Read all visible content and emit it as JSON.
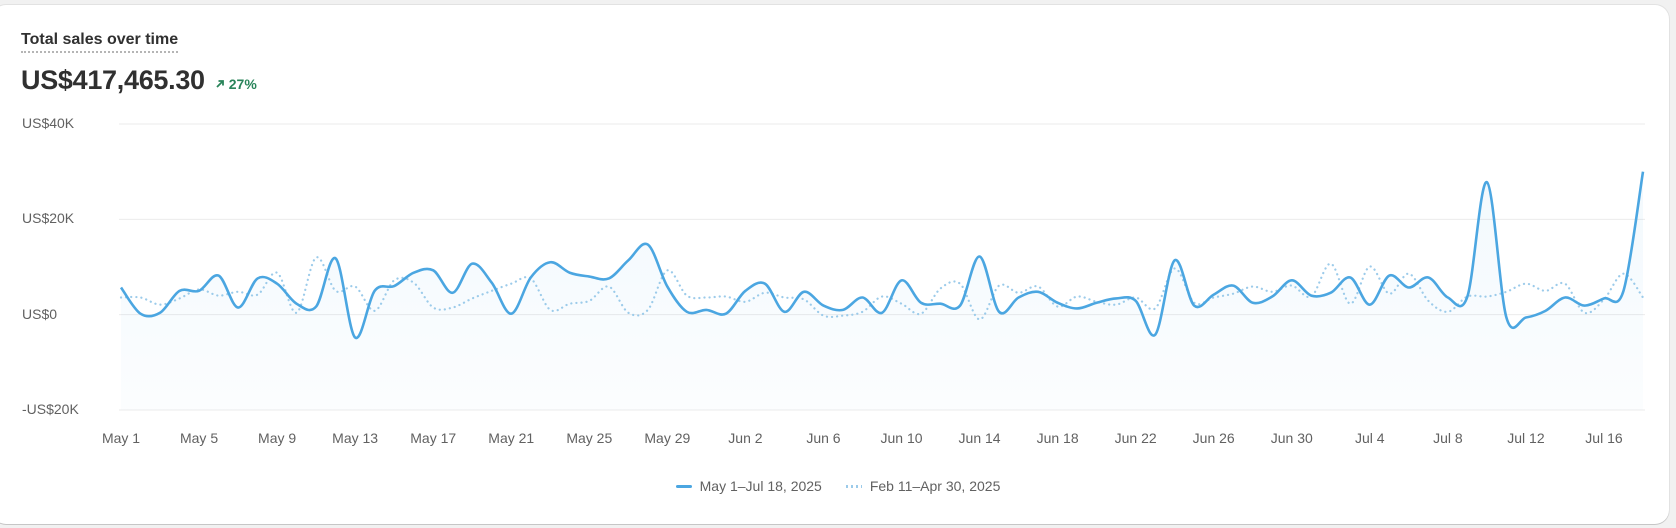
{
  "card": {
    "title": "Total sales over time",
    "metric": "US$417,465.30",
    "delta": {
      "value": "27%",
      "direction": "up",
      "icon": "arrow-up-right-icon",
      "color": "#29845a"
    }
  },
  "legend": {
    "current": "May 1–Jul 18, 2025",
    "previous": "Feb 11–Apr 30, 2025"
  },
  "colors": {
    "current": "#4ba6e1",
    "previous": "#9ccbea",
    "grid": "#ebebeb"
  },
  "chart_data": {
    "type": "line",
    "title": "Total sales over time",
    "xlabel": "",
    "ylabel": "",
    "ylim": [
      -20000,
      40000
    ],
    "y_ticks": [
      "US$40K",
      "US$20K",
      "US$0",
      "-US$20K"
    ],
    "x_ticks": [
      "May 1",
      "May 5",
      "May 9",
      "May 13",
      "May 17",
      "May 21",
      "May 25",
      "May 29",
      "Jun 2",
      "Jun 6",
      "Jun 10",
      "Jun 14",
      "Jun 18",
      "Jun 22",
      "Jun 26",
      "Jun 30",
      "Jul 4",
      "Jul 8",
      "Jul 12",
      "Jul 16"
    ],
    "grid": true,
    "legend_position": "bottom",
    "x_start": "May 1, 2025",
    "x_end": "Jul 18, 2025",
    "series": [
      {
        "name": "May 1–Jul 18, 2025",
        "style": "solid",
        "values_k": [
          5.7,
          0.2,
          0.4,
          5,
          5,
          8.2,
          1.5,
          7.6,
          6.5,
          2.3,
          1.7,
          11.8,
          -4.8,
          5,
          6,
          8.8,
          9.3,
          4.6,
          10.7,
          6.7,
          0.2,
          7.8,
          11,
          8.8,
          8,
          7.6,
          11.4,
          14.7,
          5.9,
          0.6,
          1,
          0.2,
          5,
          6.5,
          0.6,
          4.8,
          1.9,
          1,
          3.6,
          0.4,
          7.2,
          2.5,
          2.3,
          1.9,
          12.2,
          0.6,
          3.6,
          4.8,
          2.5,
          1.3,
          2.5,
          3.4,
          2.9,
          -4.2,
          11.4,
          1.9,
          4.2,
          6.1,
          2.5,
          3.8,
          7.2,
          4,
          4.6,
          7.8,
          2.1,
          8.2,
          5.7,
          7.8,
          3.6,
          3.8,
          27.8,
          -0.6,
          -0.6,
          0.8,
          3.6,
          1.9,
          3.4,
          5,
          30
        ]
      },
      {
        "name": "Feb 11–Apr 30, 2025",
        "style": "dotted",
        "values_k": [
          3.6,
          3.6,
          2.1,
          3.4,
          5.3,
          4,
          4.8,
          4.2,
          8.8,
          0.4,
          12,
          5,
          5.9,
          0.8,
          7.2,
          6.7,
          1.5,
          1.5,
          3.4,
          5,
          6.5,
          7.6,
          1,
          2.3,
          2.9,
          5.9,
          0.4,
          1,
          9.3,
          4,
          3.6,
          3.8,
          2.7,
          4.6,
          3.6,
          3.2,
          -0.2,
          -0.2,
          0.6,
          3.8,
          2.3,
          0.2,
          5.5,
          6.5,
          -1,
          6.1,
          4.6,
          5.9,
          1.7,
          3.8,
          2.7,
          2.1,
          3.6,
          1.3,
          9.7,
          2.5,
          3.6,
          4.4,
          5.9,
          4.8,
          6.1,
          3.8,
          10.7,
          2.3,
          10.1,
          4.4,
          8.6,
          2.9,
          0.6,
          3.8,
          3.8,
          4.8,
          6.5,
          5,
          6.5,
          0.4,
          3.2,
          8.6,
          3.6
        ]
      }
    ]
  }
}
